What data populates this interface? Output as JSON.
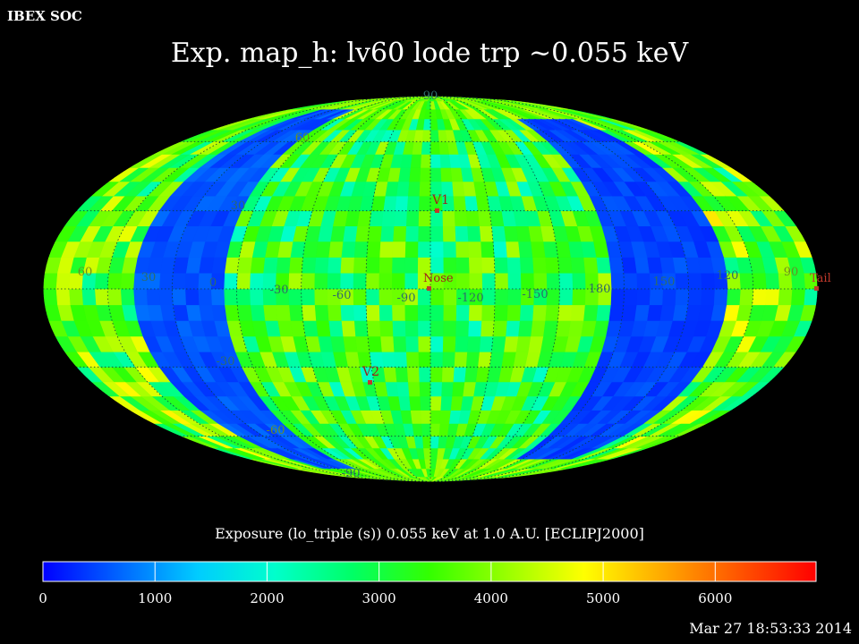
{
  "header": {
    "corner_label": "IBEX SOC",
    "title": "Exp.   map_h: lv60 lode trp ~0.055 keV"
  },
  "map": {
    "projection": "mollweide",
    "grid_labels_lon": [
      "60",
      "30",
      "0",
      "-30",
      "-60",
      "-90",
      "-120",
      "-150",
      "180",
      "150",
      "120",
      "90"
    ],
    "grid_labels_lat": [
      "90",
      "60",
      "30",
      "-30",
      "-60",
      "-90"
    ],
    "markers": [
      {
        "name": "V1",
        "color": "#c0392b"
      },
      {
        "name": "Nose",
        "color": "#c0392b"
      },
      {
        "name": "V2",
        "color": "#c0392b"
      },
      {
        "name": "Tail",
        "color": "#c0392b"
      }
    ]
  },
  "colorbar": {
    "title": "Exposure (lo_triple (s))  0.055 keV at 1.0 A.U. [ECLIPJ2000]",
    "ticks": [
      "0",
      "1000",
      "2000",
      "3000",
      "4000",
      "5000",
      "6000"
    ],
    "range": [
      0,
      6900
    ],
    "colors": [
      "#0000ff",
      "#0066ff",
      "#00ccff",
      "#00ffcc",
      "#00ff66",
      "#33ff00",
      "#99ff00",
      "#ffff00",
      "#ffaa00",
      "#ff5500",
      "#ff0000"
    ]
  },
  "footer": {
    "timestamp": "Mar 27 18:53:33 2014"
  }
}
